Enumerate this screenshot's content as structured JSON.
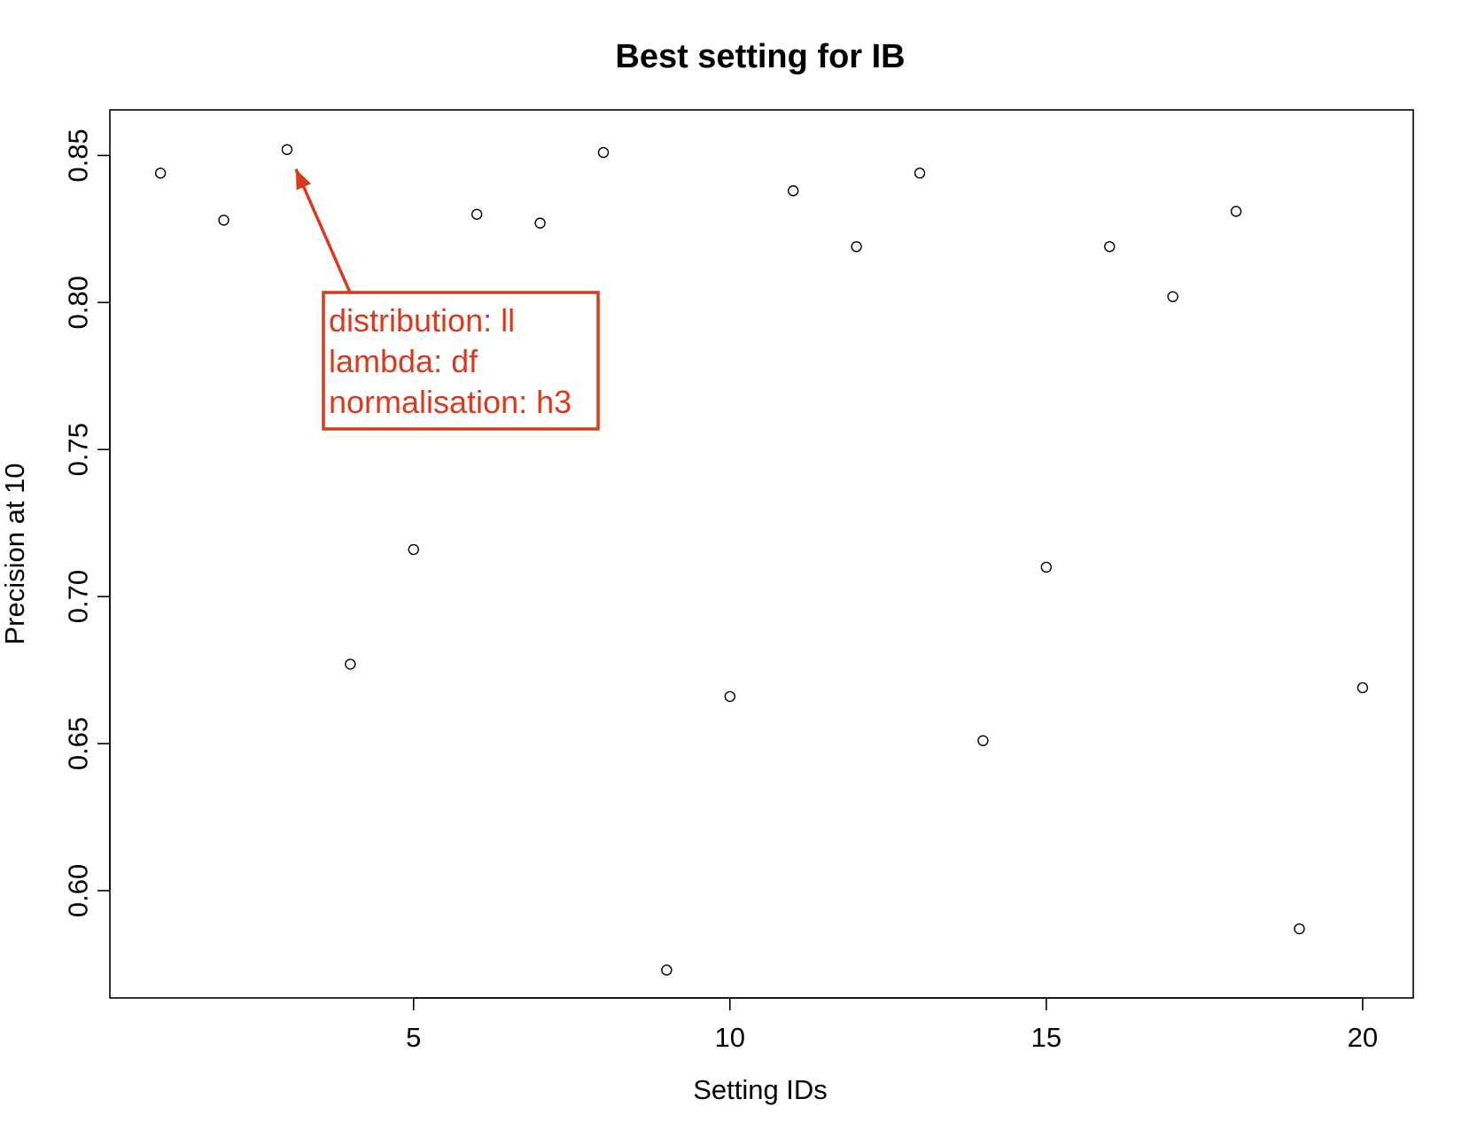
{
  "chart_data": {
    "type": "scatter",
    "title": "Best setting for IB",
    "xlabel": "Setting IDs",
    "ylabel": "Precision at 10",
    "xlim": [
      0.2,
      20.8
    ],
    "ylim": [
      0.5635,
      0.8655
    ],
    "x_ticks": [
      5,
      10,
      15,
      20
    ],
    "y_ticks": [
      0.6,
      0.65,
      0.7,
      0.75,
      0.8,
      0.85
    ],
    "x_tick_labels": [
      "5",
      "10",
      "15",
      "20"
    ],
    "y_tick_labels": [
      "0.60",
      "0.65",
      "0.70",
      "0.75",
      "0.80",
      "0.85"
    ],
    "grid": false,
    "marker": "open-circle",
    "series": [
      {
        "x": [
          1,
          2,
          3,
          4,
          5,
          6,
          7,
          8,
          9,
          10,
          11,
          12,
          13,
          14,
          15,
          16,
          17,
          18,
          19,
          20
        ],
        "y": [
          0.844,
          0.828,
          0.852,
          0.677,
          0.716,
          0.83,
          0.827,
          0.851,
          0.573,
          0.666,
          0.838,
          0.819,
          0.844,
          0.651,
          0.71,
          0.819,
          0.802,
          0.831,
          0.587,
          0.669
        ]
      }
    ],
    "annotation": {
      "target_x": 3,
      "target_y": 0.852,
      "lines": [
        "distribution: ll",
        "lambda: df",
        "normalisation: h3"
      ],
      "color": "#d93a1e"
    }
  }
}
